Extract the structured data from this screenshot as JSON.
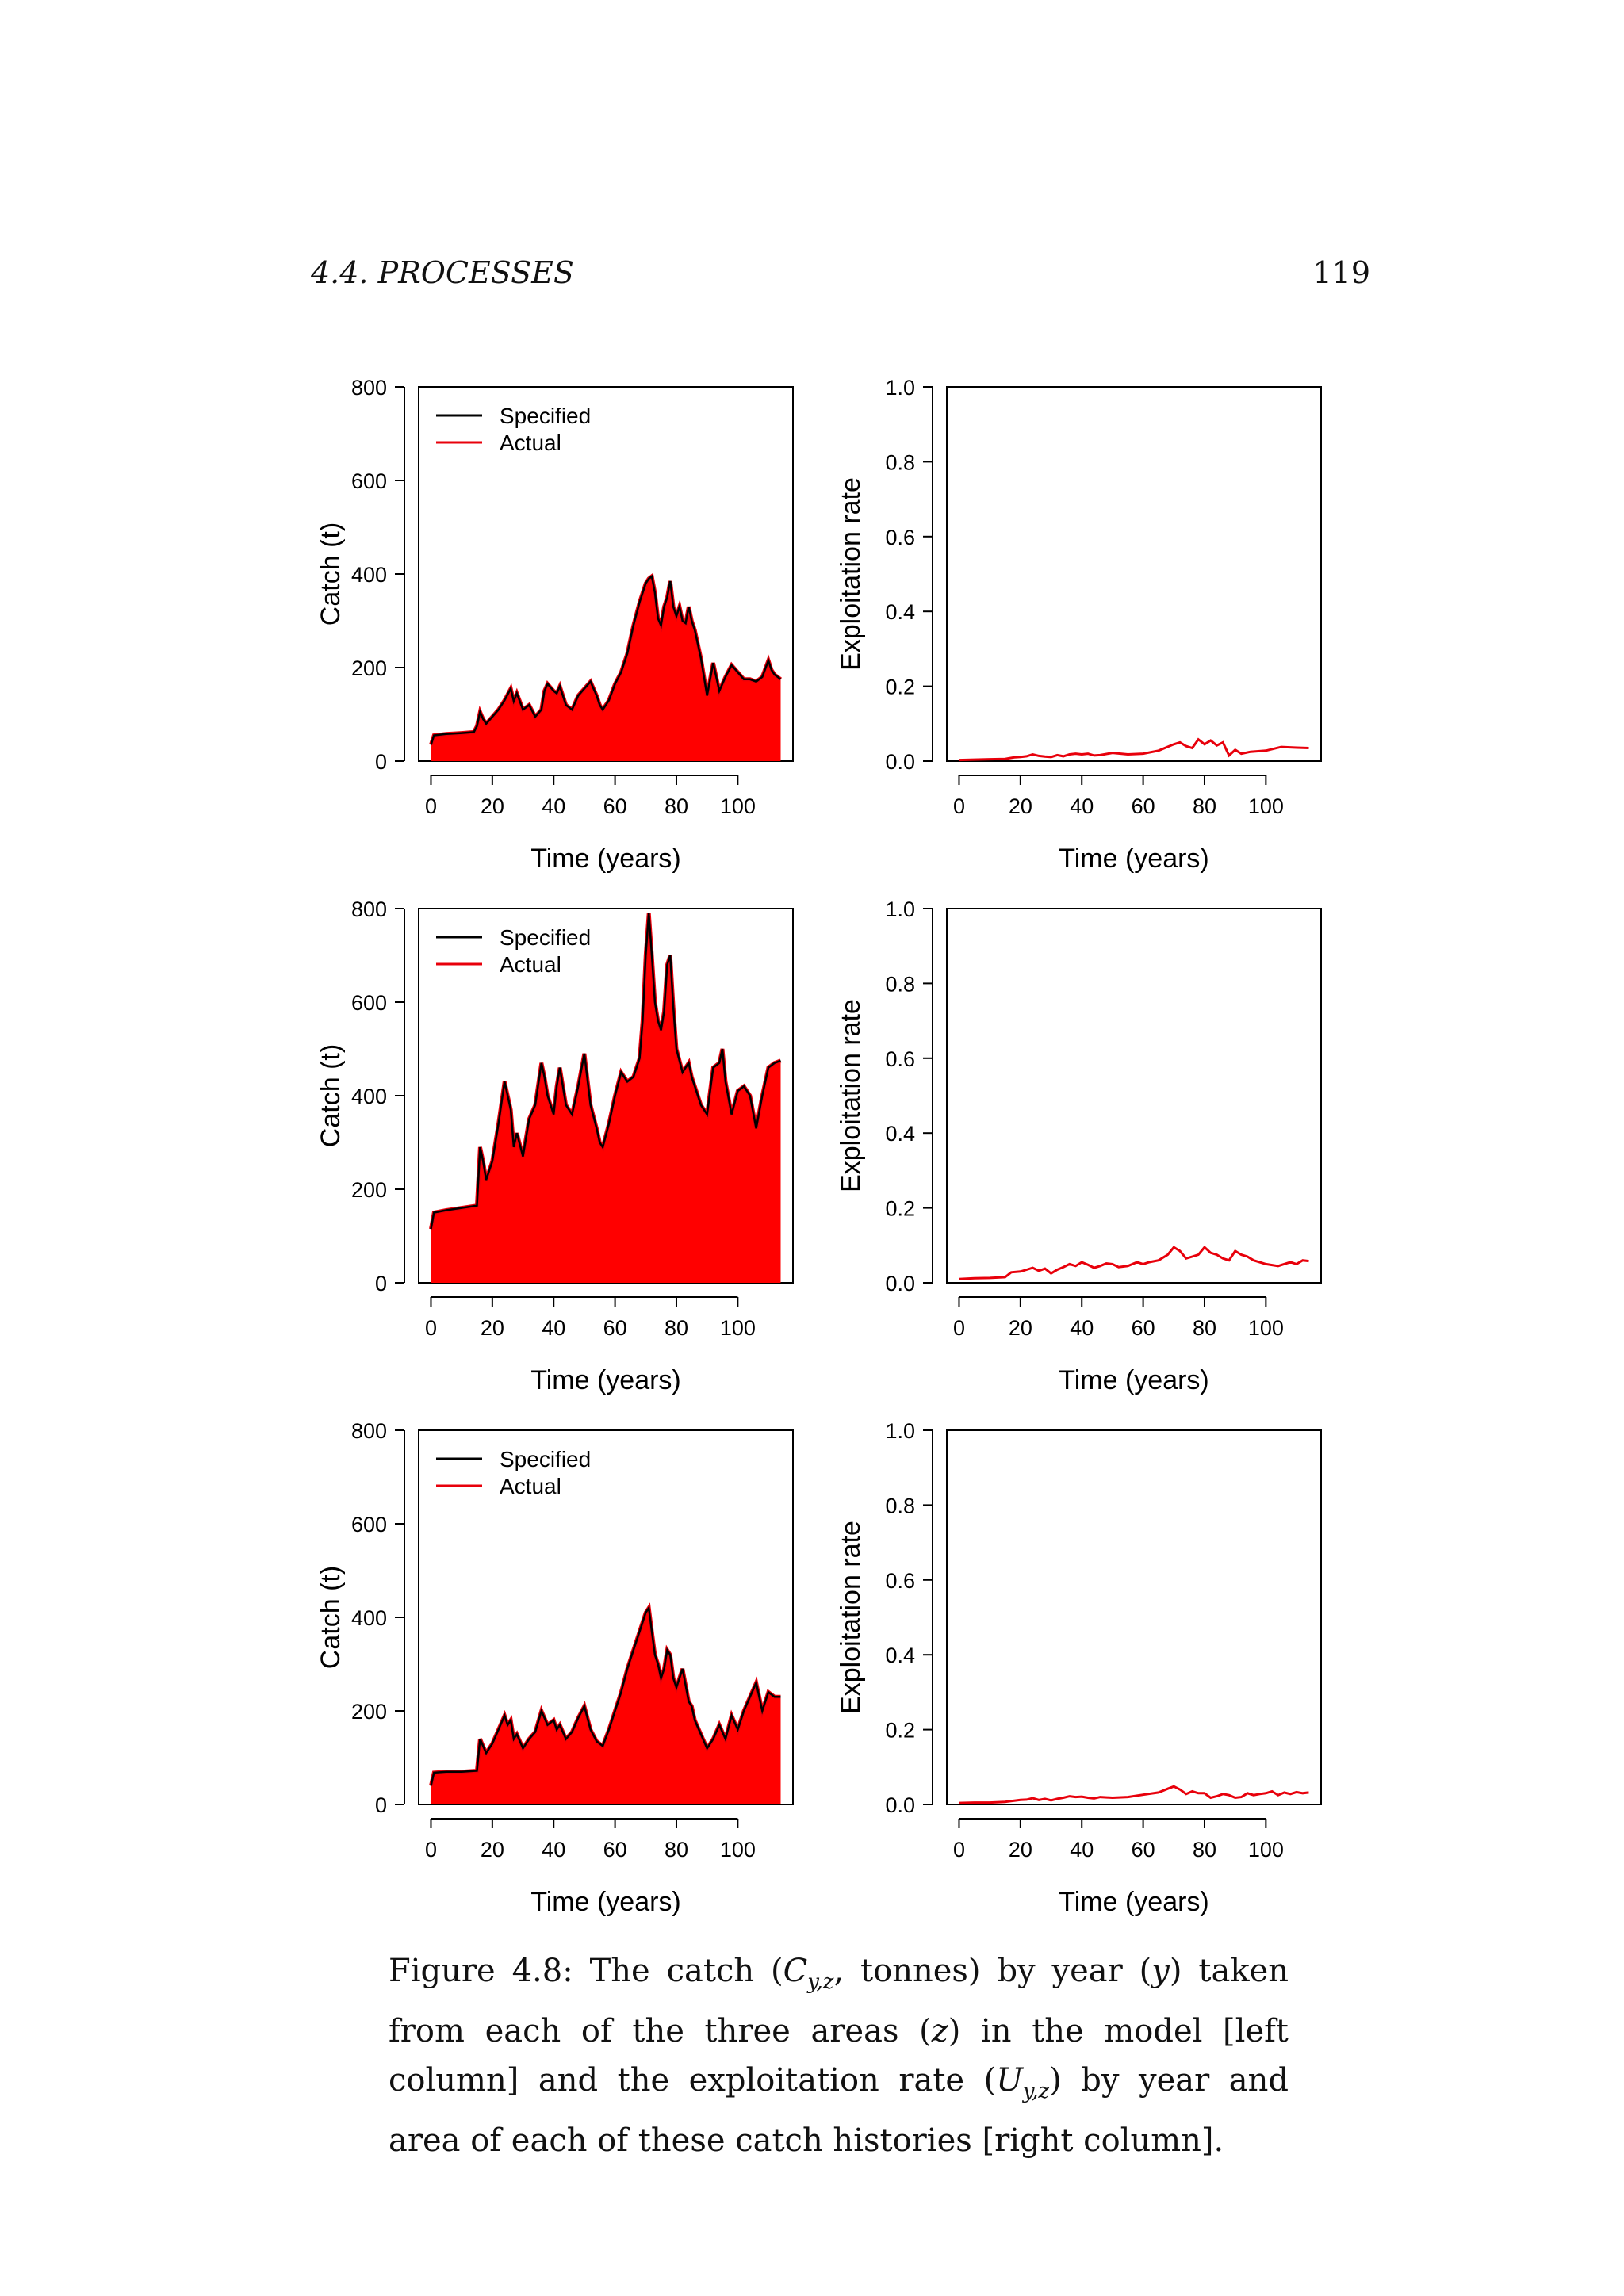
{
  "header": {
    "section": "4.4.  PROCESSES",
    "page_number": "119"
  },
  "caption": {
    "label": "Figure 4.8:",
    "t1": " The catch (",
    "sym_c": "C",
    "sub_c": "y,z",
    "t2": ", tonnes) by year (",
    "sym_y": "y",
    "t3": ") taken from each of the three areas (",
    "sym_z": "z",
    "t4": ") in the model [left column] and the exploitation rate (",
    "sym_u": "U",
    "sub_u": "y,z",
    "t5": ") by year and area of each of these catch histories [right column]."
  },
  "chart_data": [
    {
      "type": "area",
      "panel": "catch-area-1",
      "xlabel": "Time (years)",
      "ylabel": "Catch (t)",
      "xlim": [
        -4,
        118
      ],
      "ylim": [
        0,
        800
      ],
      "xticks": [
        0,
        20,
        40,
        60,
        80,
        100
      ],
      "yticks": [
        0,
        200,
        400,
        600,
        800
      ],
      "legend": {
        "position": "top-left",
        "entries": [
          {
            "name": "Specified",
            "color": "#000000"
          },
          {
            "name": "Actual",
            "color": "#e8000b"
          }
        ]
      },
      "fill_color": "#ff0000",
      "series": [
        {
          "name": "Specified",
          "x": [
            0,
            1,
            5,
            10,
            14,
            15,
            16,
            17,
            18,
            20,
            22,
            24,
            26,
            27,
            28,
            30,
            32,
            34,
            36,
            37,
            38,
            40,
            41,
            42,
            44,
            46,
            48,
            50,
            52,
            54,
            55,
            56,
            58,
            60,
            62,
            64,
            66,
            68,
            70,
            71,
            72,
            73,
            74,
            75,
            76,
            77,
            78,
            79,
            80,
            81,
            82,
            83,
            84,
            85,
            86,
            88,
            90,
            92,
            94,
            96,
            98,
            100,
            102,
            104,
            106,
            108,
            110,
            111,
            112,
            113,
            114
          ],
          "y": [
            35,
            55,
            58,
            60,
            62,
            75,
            105,
            90,
            80,
            95,
            110,
            130,
            155,
            128,
            145,
            110,
            120,
            95,
            110,
            150,
            165,
            150,
            145,
            160,
            120,
            110,
            140,
            155,
            170,
            140,
            120,
            110,
            130,
            165,
            190,
            230,
            290,
            340,
            380,
            390,
            395,
            360,
            305,
            290,
            330,
            350,
            385,
            330,
            310,
            330,
            300,
            295,
            330,
            300,
            280,
            220,
            140,
            210,
            150,
            180,
            205,
            190,
            175,
            175,
            170,
            180,
            215,
            195,
            185,
            180,
            175
          ]
        }
      ]
    },
    {
      "type": "line",
      "panel": "exploitation-rate-1",
      "xlabel": "Time (years)",
      "ylabel": "Exploitation rate",
      "xlim": [
        -4,
        118
      ],
      "ylim": [
        0,
        1
      ],
      "xticks": [
        0,
        20,
        40,
        60,
        80,
        100
      ],
      "yticks": [
        "0.0",
        "0.2",
        "0.4",
        "0.6",
        "0.8",
        "1.0"
      ],
      "series": [
        {
          "name": "",
          "color": "#e8000b",
          "x": [
            0,
            5,
            10,
            15,
            18,
            20,
            22,
            24,
            26,
            28,
            30,
            32,
            34,
            36,
            38,
            40,
            42,
            44,
            46,
            50,
            55,
            60,
            65,
            70,
            72,
            74,
            76,
            78,
            80,
            82,
            84,
            86,
            88,
            90,
            92,
            95,
            100,
            105,
            110,
            114
          ],
          "y": [
            0.003,
            0.004,
            0.005,
            0.006,
            0.01,
            0.011,
            0.013,
            0.018,
            0.014,
            0.012,
            0.011,
            0.016,
            0.013,
            0.018,
            0.02,
            0.018,
            0.02,
            0.015,
            0.016,
            0.022,
            0.018,
            0.02,
            0.028,
            0.045,
            0.05,
            0.04,
            0.035,
            0.058,
            0.045,
            0.055,
            0.042,
            0.05,
            0.015,
            0.03,
            0.02,
            0.025,
            0.028,
            0.038,
            0.036,
            0.035
          ]
        }
      ]
    },
    {
      "type": "area",
      "panel": "catch-area-2",
      "xlabel": "Time (years)",
      "ylabel": "Catch (t)",
      "xlim": [
        -4,
        118
      ],
      "ylim": [
        0,
        800
      ],
      "xticks": [
        0,
        20,
        40,
        60,
        80,
        100
      ],
      "yticks": [
        0,
        200,
        400,
        600,
        800
      ],
      "legend": {
        "position": "top-left",
        "entries": [
          {
            "name": "Specified",
            "color": "#000000"
          },
          {
            "name": "Actual",
            "color": "#e8000b"
          }
        ]
      },
      "fill_color": "#ff0000",
      "series": [
        {
          "name": "Specified",
          "x": [
            0,
            1,
            5,
            10,
            15,
            16,
            17,
            18,
            20,
            22,
            24,
            25,
            26,
            27,
            28,
            30,
            32,
            34,
            36,
            37,
            38,
            40,
            41,
            42,
            44,
            46,
            48,
            50,
            52,
            54,
            55,
            56,
            58,
            60,
            62,
            64,
            66,
            67,
            68,
            69,
            70,
            71,
            72,
            73,
            74,
            75,
            76,
            77,
            78,
            79,
            80,
            82,
            84,
            85,
            86,
            88,
            90,
            92,
            94,
            95,
            96,
            98,
            100,
            102,
            104,
            106,
            108,
            110,
            112,
            114
          ],
          "y": [
            115,
            150,
            155,
            160,
            165,
            290,
            260,
            220,
            260,
            340,
            430,
            400,
            370,
            290,
            320,
            270,
            350,
            380,
            470,
            440,
            400,
            360,
            420,
            460,
            380,
            360,
            420,
            490,
            380,
            330,
            300,
            290,
            340,
            400,
            450,
            430,
            440,
            460,
            480,
            560,
            700,
            790,
            700,
            600,
            560,
            540,
            580,
            680,
            700,
            590,
            500,
            450,
            470,
            440,
            420,
            380,
            360,
            460,
            470,
            500,
            430,
            360,
            410,
            420,
            400,
            330,
            400,
            460,
            470,
            475
          ]
        }
      ]
    },
    {
      "type": "line",
      "panel": "exploitation-rate-2",
      "xlabel": "Time (years)",
      "ylabel": "Exploitation rate",
      "xlim": [
        -4,
        118
      ],
      "ylim": [
        0,
        1
      ],
      "xticks": [
        0,
        20,
        40,
        60,
        80,
        100
      ],
      "yticks": [
        "0.0",
        "0.2",
        "0.4",
        "0.6",
        "0.8",
        "1.0"
      ],
      "series": [
        {
          "name": "",
          "color": "#e8000b",
          "x": [
            0,
            5,
            10,
            15,
            17,
            20,
            22,
            24,
            26,
            28,
            30,
            32,
            34,
            36,
            38,
            40,
            42,
            44,
            46,
            48,
            50,
            52,
            55,
            58,
            60,
            62,
            65,
            68,
            70,
            72,
            74,
            76,
            78,
            80,
            82,
            84,
            86,
            88,
            90,
            92,
            94,
            96,
            100,
            104,
            108,
            110,
            112,
            114
          ],
          "y": [
            0.01,
            0.012,
            0.013,
            0.015,
            0.028,
            0.03,
            0.035,
            0.04,
            0.032,
            0.038,
            0.025,
            0.035,
            0.042,
            0.05,
            0.045,
            0.055,
            0.048,
            0.04,
            0.045,
            0.052,
            0.05,
            0.042,
            0.045,
            0.055,
            0.05,
            0.055,
            0.06,
            0.075,
            0.095,
            0.085,
            0.065,
            0.07,
            0.075,
            0.095,
            0.08,
            0.075,
            0.065,
            0.06,
            0.085,
            0.075,
            0.07,
            0.06,
            0.05,
            0.045,
            0.055,
            0.05,
            0.06,
            0.058
          ]
        }
      ]
    },
    {
      "type": "area",
      "panel": "catch-area-3",
      "xlabel": "Time (years)",
      "ylabel": "Catch (t)",
      "xlim": [
        -4,
        118
      ],
      "ylim": [
        0,
        800
      ],
      "xticks": [
        0,
        20,
        40,
        60,
        80,
        100
      ],
      "yticks": [
        0,
        200,
        400,
        600,
        800
      ],
      "legend": {
        "position": "top-left",
        "entries": [
          {
            "name": "Specified",
            "color": "#000000"
          },
          {
            "name": "Actual",
            "color": "#e8000b"
          }
        ]
      },
      "fill_color": "#ff0000",
      "series": [
        {
          "name": "Specified",
          "x": [
            0,
            1,
            5,
            10,
            15,
            16,
            17,
            18,
            20,
            22,
            24,
            25,
            26,
            27,
            28,
            30,
            32,
            34,
            36,
            37,
            38,
            40,
            41,
            42,
            44,
            46,
            48,
            50,
            52,
            54,
            55,
            56,
            58,
            60,
            62,
            64,
            66,
            68,
            70,
            71,
            72,
            73,
            74,
            75,
            76,
            77,
            78,
            79,
            80,
            82,
            84,
            85,
            86,
            88,
            90,
            92,
            94,
            96,
            98,
            100,
            102,
            104,
            106,
            108,
            110,
            112,
            114
          ],
          "y": [
            40,
            68,
            70,
            70,
            72,
            140,
            125,
            110,
            130,
            160,
            190,
            170,
            180,
            140,
            150,
            120,
            140,
            155,
            200,
            185,
            170,
            180,
            160,
            170,
            140,
            155,
            185,
            210,
            160,
            135,
            130,
            125,
            160,
            200,
            240,
            290,
            330,
            370,
            410,
            420,
            370,
            320,
            300,
            270,
            290,
            330,
            320,
            270,
            250,
            290,
            220,
            210,
            180,
            150,
            120,
            140,
            170,
            140,
            190,
            160,
            200,
            230,
            260,
            200,
            240,
            230,
            230
          ]
        }
      ]
    },
    {
      "type": "line",
      "panel": "exploitation-rate-3",
      "xlabel": "Time (years)",
      "ylabel": "Exploitation rate",
      "xlim": [
        -4,
        118
      ],
      "ylim": [
        0,
        1
      ],
      "xticks": [
        0,
        20,
        40,
        60,
        80,
        100
      ],
      "yticks": [
        "0.0",
        "0.2",
        "0.4",
        "0.6",
        "0.8",
        "1.0"
      ],
      "series": [
        {
          "name": "",
          "color": "#e8000b",
          "x": [
            0,
            5,
            10,
            15,
            18,
            20,
            22,
            24,
            26,
            28,
            30,
            32,
            34,
            36,
            38,
            40,
            42,
            44,
            46,
            50,
            55,
            60,
            65,
            68,
            70,
            72,
            74,
            76,
            78,
            80,
            82,
            84,
            86,
            88,
            90,
            92,
            94,
            96,
            98,
            100,
            102,
            104,
            106,
            108,
            110,
            112,
            114
          ],
          "y": [
            0.004,
            0.005,
            0.005,
            0.007,
            0.01,
            0.012,
            0.013,
            0.017,
            0.012,
            0.015,
            0.011,
            0.015,
            0.018,
            0.022,
            0.02,
            0.021,
            0.018,
            0.016,
            0.02,
            0.018,
            0.02,
            0.026,
            0.032,
            0.042,
            0.048,
            0.04,
            0.028,
            0.035,
            0.03,
            0.03,
            0.018,
            0.022,
            0.028,
            0.025,
            0.018,
            0.02,
            0.03,
            0.025,
            0.028,
            0.03,
            0.035,
            0.025,
            0.032,
            0.028,
            0.033,
            0.03,
            0.032
          ]
        }
      ]
    }
  ]
}
